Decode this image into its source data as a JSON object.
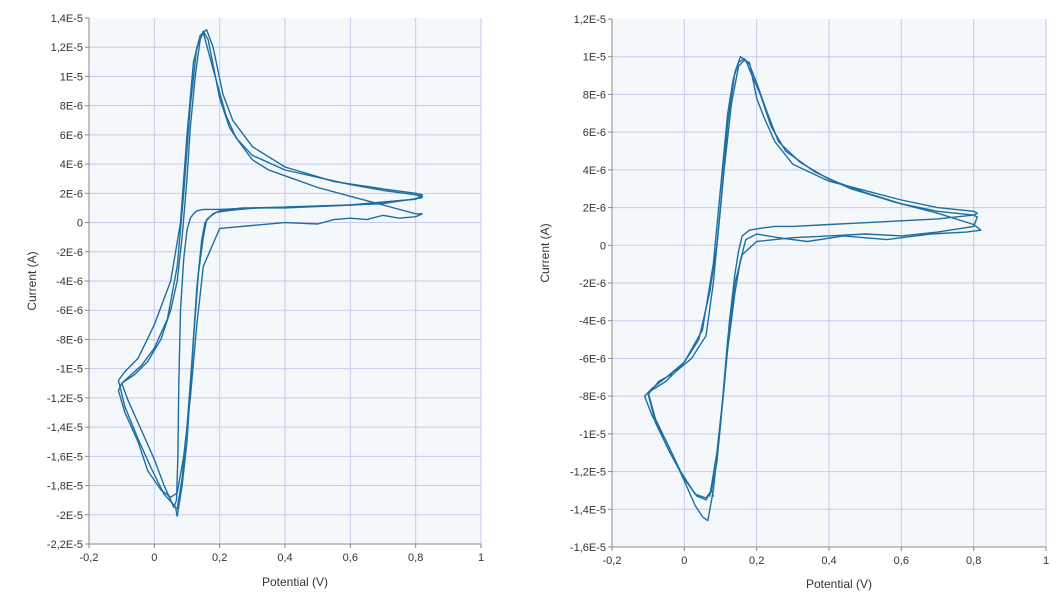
{
  "colors": {
    "plot_bg": "#f4f8fa",
    "grid": "#c9c9ec",
    "axis": "#8a8a8a",
    "line": "#1f6ea0"
  },
  "chart_data": [
    {
      "type": "line",
      "title": "",
      "xlabel": "Potential (V)",
      "ylabel": "Current (A)",
      "xlim": [
        -0.2,
        1.0
      ],
      "ylim": [
        -2.2e-05,
        1.4e-05
      ],
      "xticks": [
        -0.2,
        0,
        0.2,
        0.4,
        0.6,
        0.8,
        1
      ],
      "xtick_labels": [
        "-0,2",
        "0",
        "0,2",
        "0,4",
        "0,6",
        "0,8",
        "1"
      ],
      "yticks": [
        1.4e-05,
        1.2e-05,
        1e-05,
        8e-06,
        6e-06,
        4e-06,
        2e-06,
        0,
        -2e-06,
        -4e-06,
        -6e-06,
        -8e-06,
        -1e-05,
        -1.2e-05,
        -1.4e-05,
        -1.6e-05,
        -1.8e-05,
        -2e-05,
        -2.2e-05
      ],
      "ytick_labels": [
        "1,4E-5",
        "1,2E-5",
        "1E-5",
        "8E-6",
        "6E-6",
        "4E-6",
        "2E-6",
        "0",
        "-2E-6",
        "-4E-6",
        "-6E-6",
        "-8E-6",
        "-1E-5",
        "-1,2E-5",
        "-1,4E-5",
        "-1,6E-5",
        "-1,8E-5",
        "-2E-5",
        "-2,2E-5"
      ],
      "grid": true,
      "series": [
        {
          "x": [
            0.07,
            0.085,
            0.1,
            0.115,
            0.13,
            0.145,
            0.155,
            0.17,
            0.19,
            0.22,
            0.26,
            0.32,
            0.4,
            0.5,
            0.6,
            0.7,
            0.8,
            0.82,
            0.8,
            0.7,
            0.6,
            0.5,
            0.4,
            0.3,
            0.25,
            0.22,
            0.18,
            0.15,
            0.13,
            0.11,
            0.09,
            0.07,
            0.04,
            0.0,
            -0.04,
            -0.08,
            -0.1,
            -0.08,
            -0.04,
            0.0,
            0.03,
            0.05,
            0.06,
            0.068,
            0.072,
            0.075,
            0.08,
            0.09,
            0.1,
            0.11,
            0.12,
            0.13,
            0.15,
            0.2,
            0.3,
            0.5,
            0.7,
            0.82
          ],
          "y": [
            -1.96e-05,
            -1.75e-05,
            -1.4e-05,
            -9.5e-06,
            -4.5e-06,
            -1.2e-06,
            0,
            4e-07,
            7e-07,
            8e-07,
            9e-07,
            1e-06,
            1e-06,
            1.1e-06,
            1.2e-06,
            1.4e-06,
            1.6e-06,
            1.8e-06,
            1.9e-06,
            2.2e-06,
            2.6e-06,
            3.1e-06,
            3.6e-06,
            4.6e-06,
            5.8e-06,
            7.3e-06,
            1.05e-05,
            1.3e-05,
            1.2e-05,
            8e-06,
            2e-06,
            -3e-06,
            -6.6e-06,
            -8.6e-06,
            -9.8e-06,
            -1.06e-05,
            -1.1e-05,
            -1.22e-05,
            -1.42e-05,
            -1.62e-05,
            -1.8e-05,
            -1.9e-05,
            -1.95e-05,
            -1.9e-05,
            -1.6e-05,
            -1.1e-05,
            -6e-06,
            -2.5e-06,
            -5e-07,
            3e-07,
            6e-07,
            8e-07,
            9e-07,
            9e-07,
            1e-06,
            1.1e-06,
            1.3e-06,
            1.7e-06
          ]
        },
        {
          "x": [
            0.07,
            0.085,
            0.1,
            0.12,
            0.135,
            0.15,
            0.16,
            0.18,
            0.2,
            0.23,
            0.27,
            0.33,
            0.45,
            0.6,
            0.8,
            0.82,
            0.8,
            0.7,
            0.55,
            0.4,
            0.3,
            0.24,
            0.21,
            0.18,
            0.16,
            0.14,
            0.12,
            0.1,
            0.08,
            0.05,
            0.0,
            -0.05,
            -0.09,
            -0.11,
            -0.09,
            -0.05,
            -0.01,
            0.03,
            0.055,
            0.065,
            0.07
          ],
          "y": [
            -2.01e-05,
            -1.8e-05,
            -1.5e-05,
            -8e-06,
            -3.5e-06,
            -1e-06,
            2e-07,
            6e-07,
            8e-07,
            9e-07,
            1e-06,
            1e-06,
            1.1e-06,
            1.2e-06,
            1.6e-06,
            1.9e-06,
            2e-06,
            2.3e-06,
            2.8e-06,
            3.8e-06,
            5.2e-06,
            7e-06,
            8.8e-06,
            1.2e-05,
            1.32e-05,
            1.28e-05,
            1.1e-05,
            6e-06,
            0,
            -4e-06,
            -7e-06,
            -9.3e-06,
            -1.02e-05,
            -1.08e-05,
            -1.26e-05,
            -1.48e-05,
            -1.68e-05,
            -1.86e-05,
            -1.92e-05,
            -1.95e-05,
            -2.01e-05
          ]
        },
        {
          "x": [
            0.07,
            0.09,
            0.11,
            0.13,
            0.15,
            0.2,
            0.3,
            0.4,
            0.5,
            0.55,
            0.6,
            0.65,
            0.7,
            0.75,
            0.8,
            0.82,
            0.8,
            0.7,
            0.6,
            0.5,
            0.4,
            0.35,
            0.3,
            0.26,
            0.23,
            0.2,
            0.18,
            0.165,
            0.15,
            0.14,
            0.125,
            0.11,
            0.1,
            0.085,
            0.07,
            0.05,
            0.02,
            -0.02,
            -0.06,
            -0.1,
            -0.11,
            -0.09,
            -0.05,
            -0.02,
            0.02,
            0.05,
            0.07
          ],
          "y": [
            -1.85e-05,
            -1.6e-05,
            -1.2e-05,
            -7e-06,
            -3e-06,
            -4e-07,
            -2e-07,
            0,
            -1e-07,
            2e-07,
            3e-07,
            2e-07,
            5e-07,
            3e-07,
            4e-07,
            6e-07,
            6e-07,
            1.2e-06,
            1.8e-06,
            2.4e-06,
            3.2e-06,
            3.6e-06,
            4.3e-06,
            5.5e-06,
            6.5e-06,
            8.5e-06,
            1.08e-05,
            1.25e-05,
            1.31e-05,
            1.25e-05,
            1e-05,
            6.5e-06,
            3e-06,
            -1e-06,
            -4e-06,
            -6e-06,
            -8e-06,
            -9.5e-06,
            -1.04e-05,
            -1.1e-05,
            -1.15e-05,
            -1.3e-05,
            -1.5e-05,
            -1.7e-05,
            -1.83e-05,
            -1.88e-05,
            -1.85e-05
          ]
        }
      ]
    },
    {
      "type": "line",
      "title": "",
      "xlabel": "Potential (V)",
      "ylabel": "Current (A)",
      "xlim": [
        -0.2,
        1.0
      ],
      "ylim": [
        -1.6e-05,
        1.2e-05
      ],
      "xticks": [
        -0.2,
        0,
        0.2,
        0.4,
        0.6,
        0.8,
        1
      ],
      "xtick_labels": [
        "-0,2",
        "0",
        "0,2",
        "0,4",
        "0,6",
        "0,8",
        "1"
      ],
      "yticks": [
        1.2e-05,
        1e-05,
        8e-06,
        6e-06,
        4e-06,
        2e-06,
        0,
        -2e-06,
        -4e-06,
        -6e-06,
        -8e-06,
        -1e-05,
        -1.2e-05,
        -1.4e-05,
        -1.6e-05
      ],
      "ytick_labels": [
        "1,2E-5",
        "1E-5",
        "8E-6",
        "6E-6",
        "4E-6",
        "2E-6",
        "0",
        "-2E-6",
        "-4E-6",
        "-6E-6",
        "-8E-6",
        "-1E-5",
        "-1,2E-5",
        "-1,4E-5",
        "-1,6E-5"
      ],
      "grid": true,
      "series": [
        {
          "x": [
            0.07,
            0.09,
            0.11,
            0.125,
            0.14,
            0.15,
            0.16,
            0.18,
            0.21,
            0.25,
            0.3,
            0.4,
            0.5,
            0.6,
            0.7,
            0.8,
            0.81,
            0.8,
            0.7,
            0.6,
            0.5,
            0.4,
            0.3,
            0.25,
            0.22,
            0.2,
            0.18,
            0.165,
            0.15,
            0.13,
            0.11,
            0.09,
            0.07,
            0.04,
            0.0,
            -0.05,
            -0.09,
            -0.11,
            -0.09,
            -0.05,
            -0.01,
            0.03,
            0.06,
            0.075,
            0.08
          ],
          "y": [
            -1.33e-05,
            -1.1e-05,
            -7.5e-06,
            -4e-06,
            -1.5e-06,
            -3e-07,
            5e-07,
            8e-07,
            9e-07,
            1e-06,
            1e-06,
            1.1e-06,
            1.2e-06,
            1.3e-06,
            1.4e-06,
            1.6e-06,
            1.7e-06,
            1.8e-06,
            2e-06,
            2.4e-06,
            2.9e-06,
            3.4e-06,
            4.3e-06,
            5.5e-06,
            6.8e-06,
            7.8e-06,
            9.7e-06,
            9.8e-06,
            9.5e-06,
            7.5e-06,
            4e-06,
            0,
            -2.5e-06,
            -5e-06,
            -6.2e-06,
            -7e-06,
            -7.6e-06,
            -8e-06,
            -9e-06,
            -1.04e-05,
            -1.2e-05,
            -1.32e-05,
            -1.34e-05,
            -1.3e-05,
            -1.33e-05
          ]
        },
        {
          "x": [
            0.065,
            0.08,
            0.1,
            0.12,
            0.14,
            0.16,
            0.2,
            0.3,
            0.4,
            0.5,
            0.6,
            0.7,
            0.8,
            0.81,
            0.8,
            0.7,
            0.6,
            0.5,
            0.4,
            0.32,
            0.26,
            0.23,
            0.2,
            0.18,
            0.165,
            0.15,
            0.135,
            0.12,
            0.1,
            0.08,
            0.05,
            0.0,
            -0.05,
            -0.1,
            -0.08,
            -0.04,
            0.0,
            0.03,
            0.05,
            0.065
          ],
          "y": [
            -1.46e-05,
            -1.3e-05,
            -9.5e-06,
            -5e-06,
            -2e-06,
            -5e-07,
            2e-07,
            4e-07,
            5e-07,
            6e-07,
            5e-07,
            7e-07,
            1e-06,
            1.5e-06,
            1.6e-06,
            1.8e-06,
            2.2e-06,
            2.8e-06,
            3.5e-06,
            4.4e-06,
            5.5e-06,
            7e-06,
            8.6e-06,
            9.6e-06,
            9.9e-06,
            9.7e-06,
            8.8e-06,
            7e-06,
            3e-06,
            -1e-06,
            -4.5e-06,
            -6.2e-06,
            -7.2e-06,
            -7.8e-06,
            -9.2e-06,
            -1.08e-05,
            -1.25e-05,
            -1.38e-05,
            -1.44e-05,
            -1.46e-05
          ]
        },
        {
          "x": [
            0.075,
            0.09,
            0.105,
            0.12,
            0.14,
            0.155,
            0.17,
            0.2,
            0.26,
            0.34,
            0.44,
            0.56,
            0.68,
            0.78,
            0.82,
            0.8,
            0.7,
            0.58,
            0.46,
            0.36,
            0.28,
            0.24,
            0.21,
            0.185,
            0.17,
            0.155,
            0.14,
            0.12,
            0.1,
            0.08,
            0.06,
            0.02,
            -0.03,
            -0.07,
            -0.1,
            -0.08,
            -0.04,
            0.0,
            0.035,
            0.06,
            0.075
          ],
          "y": [
            -1.3e-05,
            -1.15e-05,
            -8.5e-06,
            -5.5e-06,
            -2.5e-06,
            -8e-07,
            3e-07,
            6e-07,
            4e-07,
            2e-07,
            5e-07,
            3e-07,
            6e-07,
            7e-07,
            8e-07,
            1.1e-06,
            1.7e-06,
            2.3e-06,
            3e-06,
            3.9e-06,
            5e-06,
            6.3e-06,
            8e-06,
            9.1e-06,
            9.8e-06,
            1e-05,
            9.2e-06,
            6.5e-06,
            2e-06,
            -2e-06,
            -4.8e-06,
            -6e-06,
            -6.8e-06,
            -7.2e-06,
            -7.9e-06,
            -9.4e-06,
            -1.1e-05,
            -1.24e-05,
            -1.33e-05,
            -1.35e-05,
            -1.3e-05
          ]
        }
      ]
    }
  ]
}
